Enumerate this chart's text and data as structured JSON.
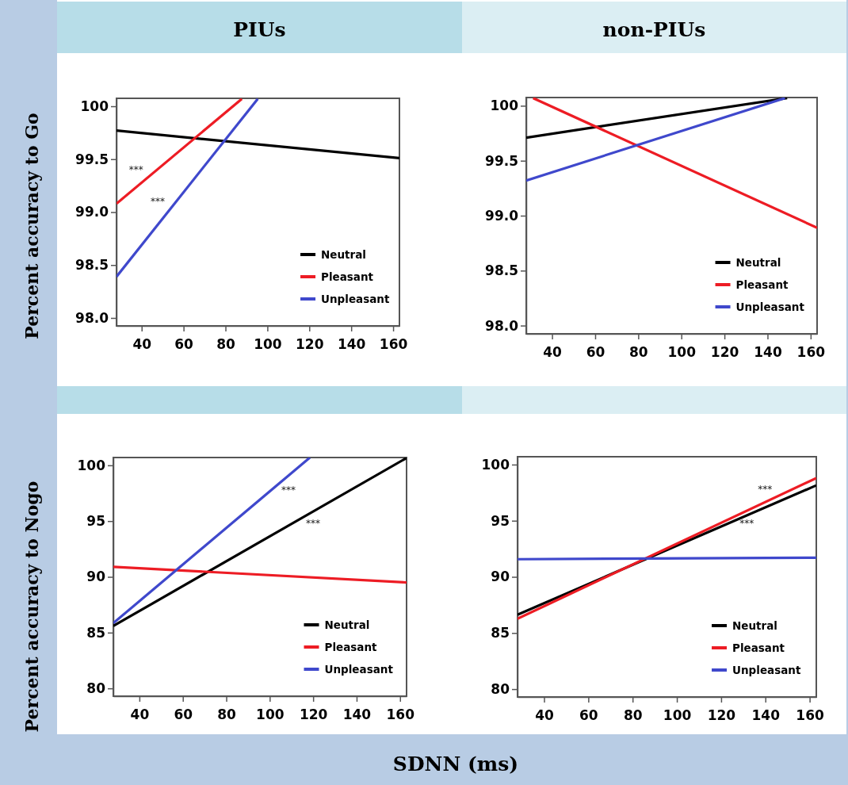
{
  "chart_data": [
    {
      "type": "line",
      "title": "PIUs",
      "ylabel": "Percent accuracy to Go",
      "xlim": [
        28,
        163
      ],
      "xticks": [
        40,
        60,
        80,
        100,
        120,
        140,
        160
      ],
      "ylim": [
        97.925,
        100.075
      ],
      "yticks": [
        {
          "value": 98,
          "label": "98.0"
        },
        {
          "value": 98.5,
          "label": "98.5"
        },
        {
          "value": 99,
          "label": "99.0"
        },
        {
          "value": 99.5,
          "label": "99.5"
        },
        100
      ],
      "legend": "bottom right",
      "line_style": "solid",
      "marker": "none",
      "annotations": [
        "***",
        "***"
      ],
      "series": [
        {
          "name": "Neutral",
          "color": "#000000",
          "x": [
            28,
            163
          ],
          "values": [
            99.77,
            99.51
          ]
        },
        {
          "name": "Pleasant",
          "color": "#ed1c24",
          "x": [
            28,
            87.8
          ],
          "values": [
            99.08,
            100.07
          ]
        },
        {
          "name": "Unpleasant",
          "color": "#3f48cc",
          "x": [
            28,
            95.4
          ],
          "values": [
            98.39,
            100.07
          ]
        }
      ]
    },
    {
      "type": "line",
      "title": "non-PIUs",
      "xlim": [
        28,
        163
      ],
      "xticks": [
        40,
        60,
        80,
        100,
        120,
        140,
        160
      ],
      "ylim": [
        97.925,
        100.075
      ],
      "yticks": [
        {
          "value": 98,
          "label": "98.0"
        },
        {
          "value": 98.5,
          "label": "98.5"
        },
        {
          "value": 99,
          "label": "99.0"
        },
        {
          "value": 99.5,
          "label": "99.5"
        },
        100
      ],
      "legend": "bottom right",
      "line_style": "solid",
      "marker": "none",
      "series": [
        {
          "name": "Neutral",
          "color": "#000000",
          "x": [
            28,
            149.1
          ],
          "values": [
            99.71,
            100.07
          ]
        },
        {
          "name": "Pleasant",
          "color": "#ed1c24",
          "x": [
            31.2,
            163
          ],
          "values": [
            100.07,
            98.89
          ]
        },
        {
          "name": "Unpleasant",
          "color": "#3f48cc",
          "x": [
            28,
            148.1
          ],
          "values": [
            99.32,
            100.07
          ]
        }
      ]
    },
    {
      "type": "line",
      "ylabel": "Percent accuracy to Nogo",
      "xlabel": "SDNN (ms)",
      "xlim": [
        28,
        163
      ],
      "xticks": [
        40,
        60,
        80,
        100,
        120,
        140,
        160
      ],
      "ylim": [
        79.3,
        100.7
      ],
      "yticks": [
        80,
        85,
        90,
        95,
        100
      ],
      "legend": "bottom right",
      "line_style": "solid",
      "marker": "none",
      "annotations": [
        "***",
        "***"
      ],
      "series": [
        {
          "name": "Neutral",
          "color": "#000000",
          "x": [
            28,
            163
          ],
          "values": [
            85.6,
            100.66
          ]
        },
        {
          "name": "Pleasant",
          "color": "#ed1c24",
          "x": [
            28,
            163
          ],
          "values": [
            90.9,
            89.5
          ]
        },
        {
          "name": "Unpleasant",
          "color": "#3f48cc",
          "x": [
            28,
            118.5
          ],
          "values": [
            85.85,
            100.7
          ]
        }
      ]
    },
    {
      "type": "line",
      "xlim": [
        28,
        163
      ],
      "xticks": [
        40,
        60,
        80,
        100,
        120,
        140,
        160
      ],
      "ylim": [
        79.3,
        100.7
      ],
      "yticks": [
        80,
        85,
        90,
        95,
        100
      ],
      "legend": "bottom right",
      "line_style": "solid",
      "marker": "none",
      "annotations": [
        "***",
        "***"
      ],
      "series": [
        {
          "name": "Neutral",
          "color": "#000000",
          "x": [
            28,
            163
          ],
          "values": [
            86.63,
            98.15
          ]
        },
        {
          "name": "Pleasant",
          "color": "#ed1c24",
          "x": [
            28,
            163
          ],
          "values": [
            86.27,
            98.8
          ]
        },
        {
          "name": "Unpleasant",
          "color": "#3f48cc",
          "x": [
            28,
            163
          ],
          "values": [
            91.57,
            91.71
          ]
        }
      ]
    }
  ]
}
